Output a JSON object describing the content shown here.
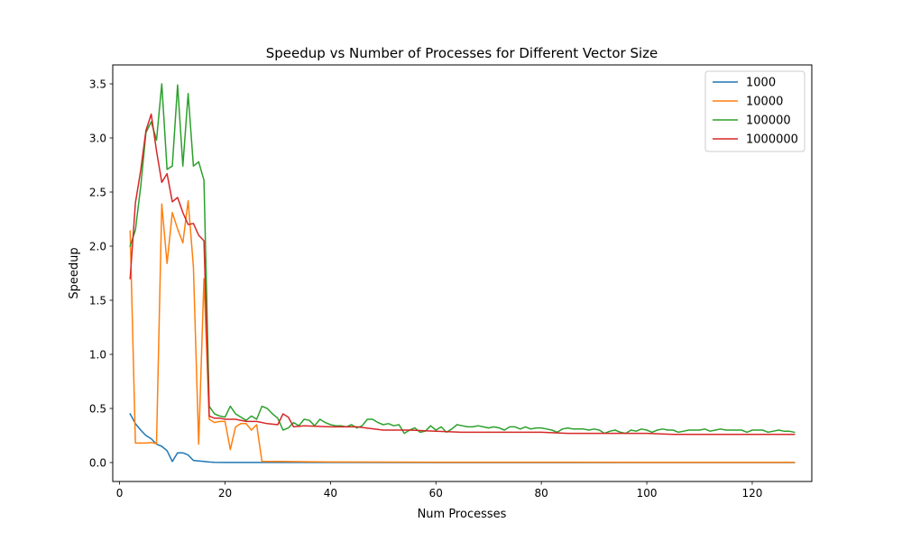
{
  "chart_data": {
    "type": "line",
    "title": "Speedup vs Number of Processes for Different Vector Size",
    "xlabel": "Num Processes",
    "ylabel": "Speedup",
    "xlim": [
      -1.3,
      131.3
    ],
    "ylim": [
      -0.175,
      3.675
    ],
    "xticks": [
      0,
      20,
      40,
      60,
      80,
      100,
      120
    ],
    "yticks": [
      0.0,
      0.5,
      1.0,
      1.5,
      2.0,
      2.5,
      3.0,
      3.5
    ],
    "ytick_labels": [
      "0.0",
      "0.5",
      "1.0",
      "1.5",
      "2.0",
      "2.5",
      "3.0",
      "3.5"
    ],
    "xtick_labels": [
      "0",
      "20",
      "40",
      "60",
      "80",
      "100",
      "120"
    ],
    "grid": false,
    "legend_position": "top-right",
    "series": [
      {
        "name": "1000",
        "color": "#1f77b4",
        "points": [
          [
            2,
            0.45
          ],
          [
            3,
            0.36
          ],
          [
            4,
            0.3
          ],
          [
            5,
            0.25
          ],
          [
            6,
            0.22
          ],
          [
            7,
            0.17
          ],
          [
            8,
            0.15
          ],
          [
            9,
            0.11
          ],
          [
            10,
            0.01
          ],
          [
            11,
            0.09
          ],
          [
            12,
            0.09
          ],
          [
            13,
            0.07
          ],
          [
            14,
            0.02
          ],
          [
            15,
            0.015
          ],
          [
            16,
            0.01
          ],
          [
            17,
            0.005
          ],
          [
            18,
            0.002
          ],
          [
            20,
            0.001
          ],
          [
            30,
            0.001
          ],
          [
            60,
            0.0
          ],
          [
            100,
            0.0
          ],
          [
            128,
            0.0
          ]
        ]
      },
      {
        "name": "10000",
        "color": "#ff7f0e",
        "points": [
          [
            2,
            2.14
          ],
          [
            3,
            0.18
          ],
          [
            4,
            0.18
          ],
          [
            5,
            0.18
          ],
          [
            6,
            0.185
          ],
          [
            7,
            0.175
          ],
          [
            8,
            2.39
          ],
          [
            9,
            1.84
          ],
          [
            10,
            2.31
          ],
          [
            11,
            2.16
          ],
          [
            12,
            2.03
          ],
          [
            13,
            2.42
          ],
          [
            14,
            1.81
          ],
          [
            15,
            0.17
          ],
          [
            16,
            1.7
          ],
          [
            17,
            0.4
          ],
          [
            18,
            0.37
          ],
          [
            19,
            0.38
          ],
          [
            20,
            0.38
          ],
          [
            21,
            0.12
          ],
          [
            22,
            0.33
          ],
          [
            23,
            0.36
          ],
          [
            24,
            0.36
          ],
          [
            25,
            0.3
          ],
          [
            26,
            0.35
          ],
          [
            27,
            0.01
          ],
          [
            30,
            0.01
          ],
          [
            40,
            0.005
          ],
          [
            60,
            0.003
          ],
          [
            80,
            0.003
          ],
          [
            100,
            0.002
          ],
          [
            128,
            0.002
          ]
        ]
      },
      {
        "name": "100000",
        "color": "#2ca02c",
        "points": [
          [
            2,
            2.0
          ],
          [
            3,
            2.15
          ],
          [
            4,
            2.55
          ],
          [
            5,
            3.05
          ],
          [
            6,
            3.15
          ],
          [
            7,
            2.98
          ],
          [
            8,
            3.5
          ],
          [
            9,
            2.71
          ],
          [
            10,
            2.74
          ],
          [
            11,
            3.49
          ],
          [
            12,
            2.74
          ],
          [
            13,
            3.41
          ],
          [
            14,
            2.74
          ],
          [
            15,
            2.78
          ],
          [
            16,
            2.61
          ],
          [
            17,
            0.52
          ],
          [
            18,
            0.45
          ],
          [
            19,
            0.43
          ],
          [
            20,
            0.42
          ],
          [
            21,
            0.52
          ],
          [
            22,
            0.45
          ],
          [
            23,
            0.42
          ],
          [
            24,
            0.39
          ],
          [
            25,
            0.43
          ],
          [
            26,
            0.4
          ],
          [
            27,
            0.52
          ],
          [
            28,
            0.5
          ],
          [
            29,
            0.45
          ],
          [
            30,
            0.41
          ],
          [
            31,
            0.3
          ],
          [
            32,
            0.32
          ],
          [
            33,
            0.37
          ],
          [
            34,
            0.34
          ],
          [
            35,
            0.4
          ],
          [
            36,
            0.39
          ],
          [
            37,
            0.34
          ],
          [
            38,
            0.4
          ],
          [
            39,
            0.37
          ],
          [
            40,
            0.35
          ],
          [
            41,
            0.34
          ],
          [
            42,
            0.34
          ],
          [
            43,
            0.33
          ],
          [
            44,
            0.35
          ],
          [
            45,
            0.32
          ],
          [
            46,
            0.34
          ],
          [
            47,
            0.4
          ],
          [
            48,
            0.4
          ],
          [
            49,
            0.37
          ],
          [
            50,
            0.35
          ],
          [
            51,
            0.36
          ],
          [
            52,
            0.34
          ],
          [
            53,
            0.35
          ],
          [
            54,
            0.27
          ],
          [
            55,
            0.3
          ],
          [
            56,
            0.32
          ],
          [
            57,
            0.28
          ],
          [
            58,
            0.29
          ],
          [
            59,
            0.34
          ],
          [
            60,
            0.3
          ],
          [
            61,
            0.33
          ],
          [
            62,
            0.28
          ],
          [
            63,
            0.31
          ],
          [
            64,
            0.35
          ],
          [
            65,
            0.34
          ],
          [
            66,
            0.33
          ],
          [
            67,
            0.33
          ],
          [
            68,
            0.34
          ],
          [
            69,
            0.33
          ],
          [
            70,
            0.32
          ],
          [
            71,
            0.33
          ],
          [
            72,
            0.32
          ],
          [
            73,
            0.3
          ],
          [
            74,
            0.33
          ],
          [
            75,
            0.33
          ],
          [
            76,
            0.31
          ],
          [
            77,
            0.33
          ],
          [
            78,
            0.31
          ],
          [
            79,
            0.32
          ],
          [
            80,
            0.32
          ],
          [
            81,
            0.31
          ],
          [
            82,
            0.3
          ],
          [
            83,
            0.28
          ],
          [
            84,
            0.31
          ],
          [
            85,
            0.32
          ],
          [
            86,
            0.31
          ],
          [
            87,
            0.31
          ],
          [
            88,
            0.31
          ],
          [
            89,
            0.3
          ],
          [
            90,
            0.31
          ],
          [
            91,
            0.3
          ],
          [
            92,
            0.27
          ],
          [
            93,
            0.29
          ],
          [
            94,
            0.3
          ],
          [
            95,
            0.28
          ],
          [
            96,
            0.27
          ],
          [
            97,
            0.3
          ],
          [
            98,
            0.29
          ],
          [
            99,
            0.31
          ],
          [
            100,
            0.3
          ],
          [
            101,
            0.28
          ],
          [
            102,
            0.3
          ],
          [
            103,
            0.31
          ],
          [
            104,
            0.3
          ],
          [
            105,
            0.3
          ],
          [
            106,
            0.28
          ],
          [
            107,
            0.29
          ],
          [
            108,
            0.3
          ],
          [
            109,
            0.3
          ],
          [
            110,
            0.3
          ],
          [
            111,
            0.31
          ],
          [
            112,
            0.29
          ],
          [
            113,
            0.3
          ],
          [
            114,
            0.31
          ],
          [
            115,
            0.3
          ],
          [
            116,
            0.3
          ],
          [
            117,
            0.3
          ],
          [
            118,
            0.3
          ],
          [
            119,
            0.28
          ],
          [
            120,
            0.3
          ],
          [
            121,
            0.3
          ],
          [
            122,
            0.3
          ],
          [
            123,
            0.28
          ],
          [
            124,
            0.29
          ],
          [
            125,
            0.3
          ],
          [
            126,
            0.29
          ],
          [
            127,
            0.29
          ],
          [
            128,
            0.28
          ]
        ]
      },
      {
        "name": "1000000",
        "color": "#d62728",
        "points": [
          [
            2,
            1.7
          ],
          [
            3,
            2.4
          ],
          [
            4,
            2.7
          ],
          [
            5,
            3.07
          ],
          [
            6,
            3.22
          ],
          [
            7,
            2.88
          ],
          [
            8,
            2.59
          ],
          [
            9,
            2.67
          ],
          [
            10,
            2.41
          ],
          [
            11,
            2.45
          ],
          [
            12,
            2.31
          ],
          [
            13,
            2.2
          ],
          [
            14,
            2.21
          ],
          [
            15,
            2.1
          ],
          [
            16,
            2.05
          ],
          [
            17,
            0.43
          ],
          [
            18,
            0.41
          ],
          [
            19,
            0.41
          ],
          [
            20,
            0.4
          ],
          [
            22,
            0.4
          ],
          [
            24,
            0.38
          ],
          [
            26,
            0.38
          ],
          [
            28,
            0.36
          ],
          [
            30,
            0.35
          ],
          [
            31,
            0.45
          ],
          [
            32,
            0.42
          ],
          [
            33,
            0.33
          ],
          [
            35,
            0.34
          ],
          [
            40,
            0.33
          ],
          [
            45,
            0.33
          ],
          [
            50,
            0.3
          ],
          [
            55,
            0.3
          ],
          [
            60,
            0.29
          ],
          [
            65,
            0.28
          ],
          [
            70,
            0.28
          ],
          [
            75,
            0.28
          ],
          [
            80,
            0.28
          ],
          [
            85,
            0.27
          ],
          [
            90,
            0.27
          ],
          [
            95,
            0.27
          ],
          [
            100,
            0.27
          ],
          [
            105,
            0.26
          ],
          [
            110,
            0.26
          ],
          [
            115,
            0.26
          ],
          [
            120,
            0.26
          ],
          [
            125,
            0.26
          ],
          [
            128,
            0.26
          ]
        ]
      }
    ]
  }
}
